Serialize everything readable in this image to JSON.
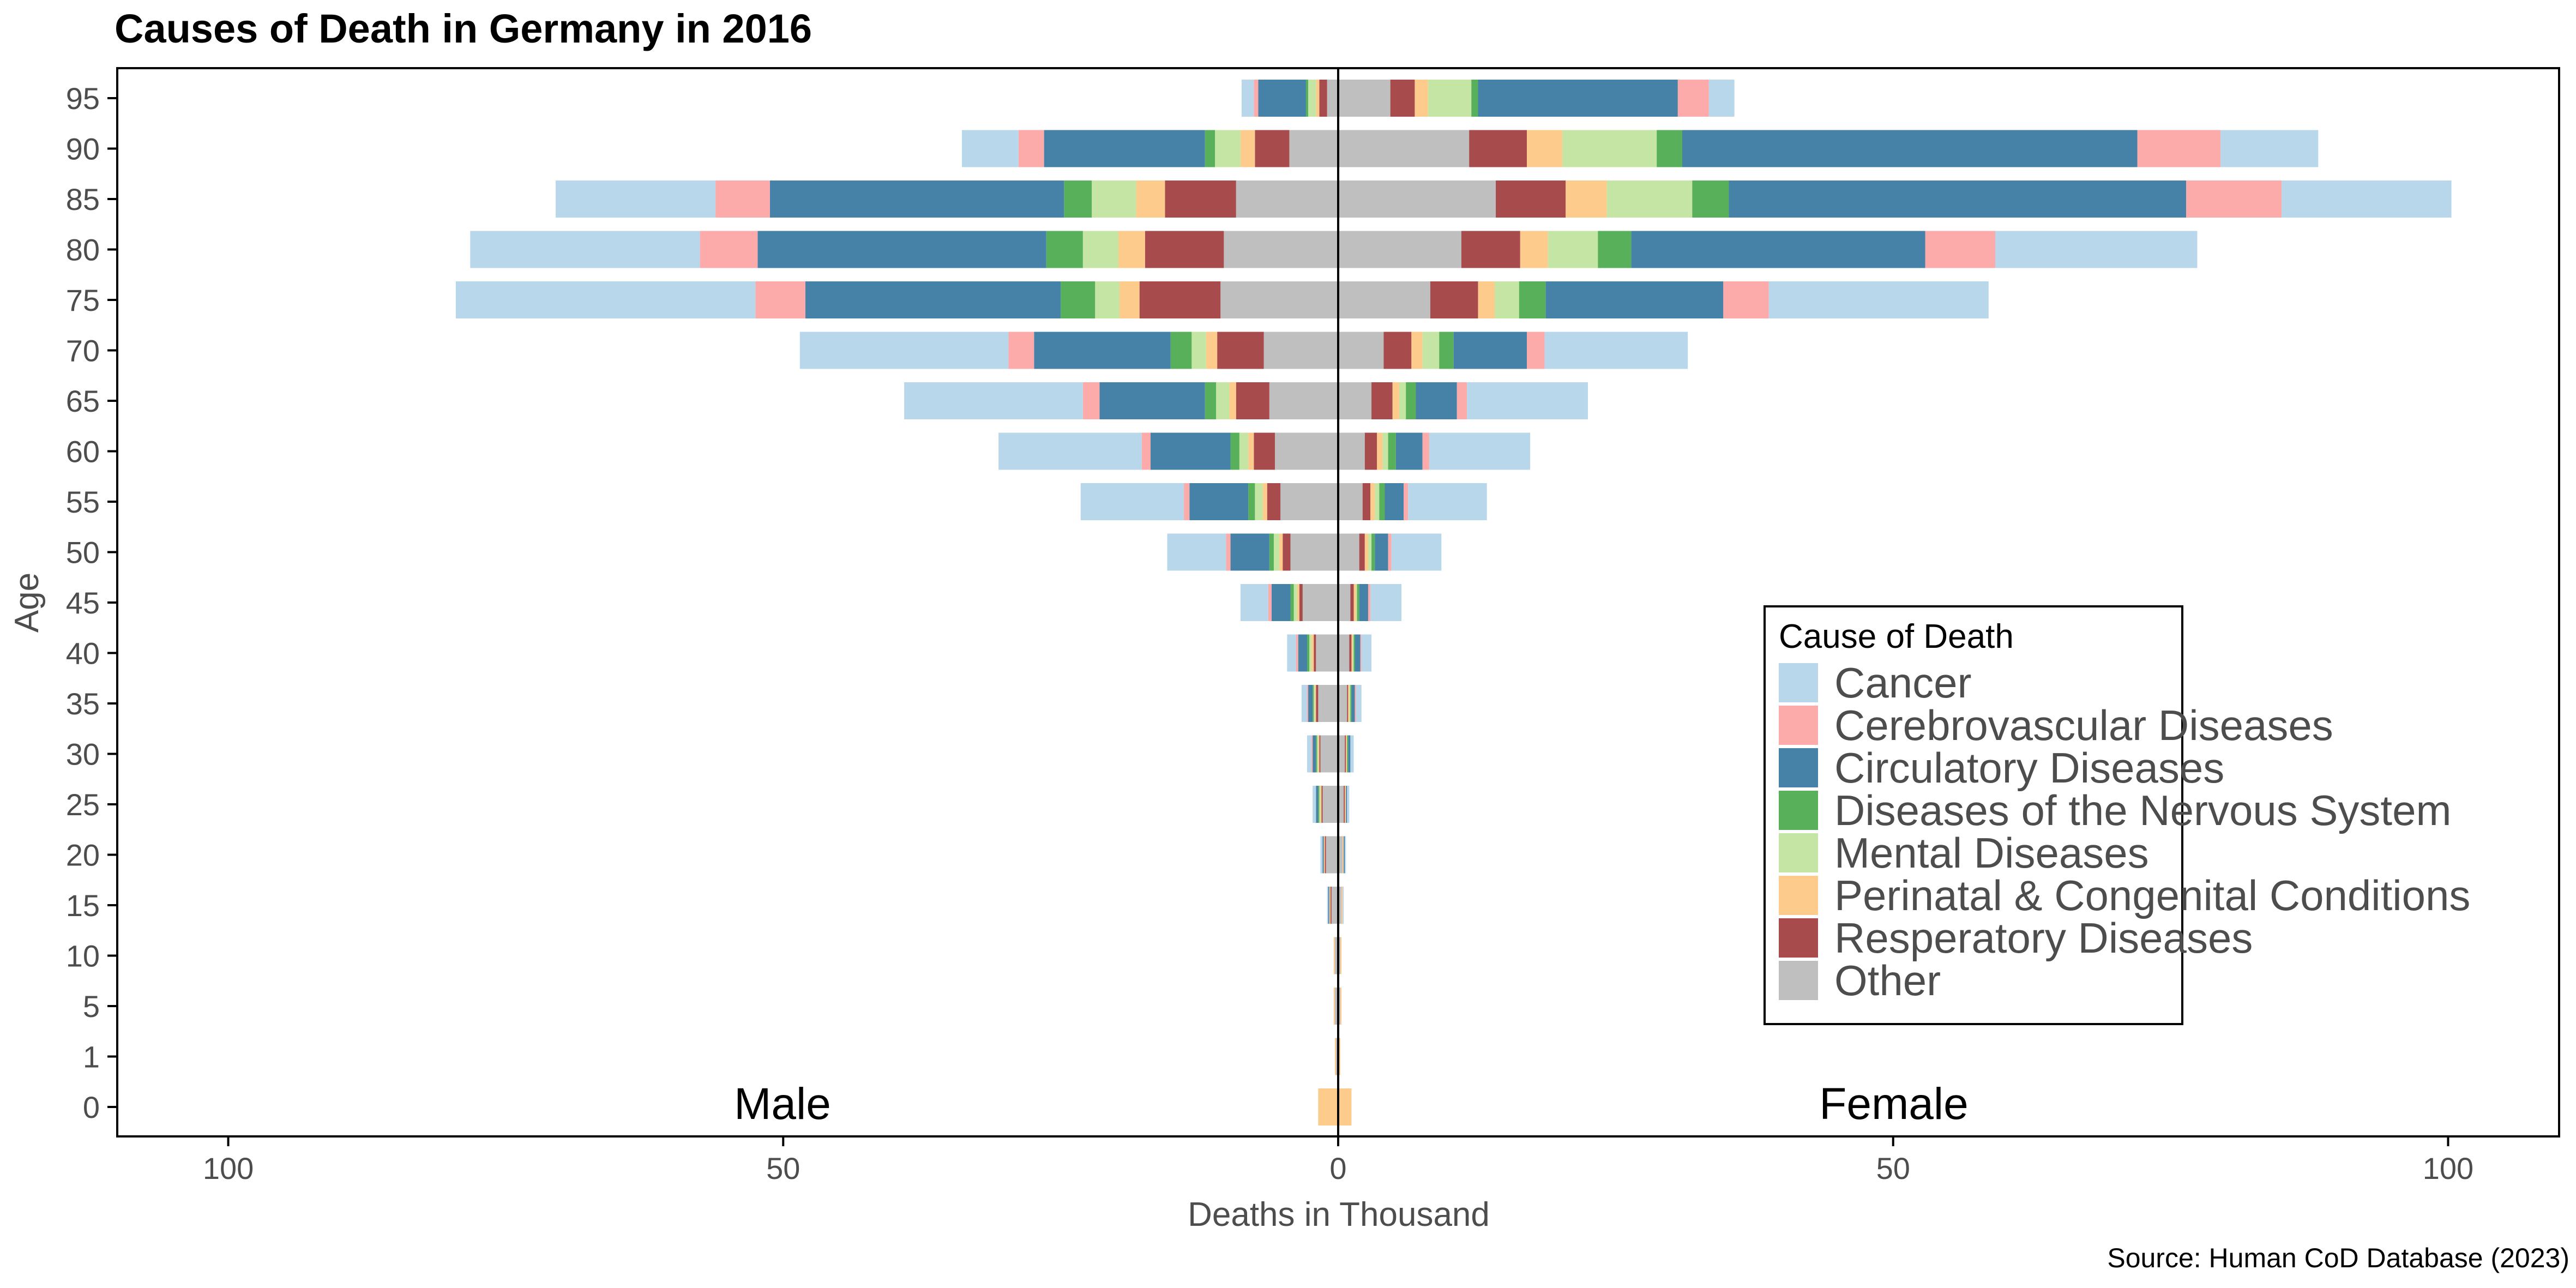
{
  "chart_data": {
    "type": "bar",
    "orientation": "horizontal-population-pyramid",
    "title": "Causes of Death in Germany in 2016",
    "xlabel": "Deaths in Thousand",
    "ylabel": "Age",
    "xlim": [
      -110,
      110
    ],
    "x_ticks": [
      -100,
      -50,
      0,
      50,
      100
    ],
    "x_tick_labels": [
      "100",
      "50",
      "0",
      "50",
      "100"
    ],
    "categories": [
      "0",
      "1",
      "5",
      "10",
      "15",
      "20",
      "25",
      "30",
      "35",
      "40",
      "45",
      "50",
      "55",
      "60",
      "65",
      "70",
      "75",
      "80",
      "85",
      "90",
      "95"
    ],
    "annotations": {
      "left": "Male",
      "right": "Female"
    },
    "legend": {
      "title": "Cause of Death",
      "position": "lower-right"
    },
    "source": "Source: Human CoD Database (2023)",
    "grid": false,
    "stack_order_from_center": [
      "Other",
      "Resperatory Diseases",
      "Perinatal & Congenital Conditions",
      "Mental Diseases",
      "Diseases of the Nervous System",
      "Circulatory Diseases",
      "Cerebrovascular Diseases",
      "Cancer"
    ],
    "series": [
      {
        "name": "Cancer",
        "color": "#b8d7ea",
        "male": [
          0,
          0,
          0,
          0,
          0.1,
          0.2,
          0.3,
          0.4,
          0.5,
          0.8,
          2.5,
          5.3,
          9.3,
          12.9,
          16.1,
          18.8,
          27.0,
          20.7,
          14.4,
          5.1,
          1.1
        ],
        "female": [
          0,
          0,
          0,
          0,
          0.1,
          0.1,
          0.2,
          0.3,
          0.5,
          0.9,
          2.8,
          4.5,
          7.1,
          9.1,
          10.9,
          12.9,
          19.8,
          18.2,
          15.3,
          8.8,
          2.3
        ]
      },
      {
        "name": "Cerebrovascular Diseases",
        "color": "#fdaaaa",
        "male": [
          0,
          0,
          0,
          0,
          0,
          0,
          0,
          0.1,
          0.1,
          0.2,
          0.3,
          0.4,
          0.5,
          0.8,
          1.5,
          2.3,
          4.5,
          5.2,
          4.9,
          2.3,
          0.4
        ],
        "female": [
          0,
          0,
          0,
          0,
          0,
          0,
          0,
          0,
          0.1,
          0.1,
          0.2,
          0.3,
          0.4,
          0.6,
          0.9,
          1.6,
          4.1,
          6.3,
          8.6,
          7.5,
          2.8
        ]
      },
      {
        "name": "Circulatory Diseases",
        "color": "#4682a8",
        "male": [
          0,
          0,
          0,
          0,
          0.1,
          0.1,
          0.2,
          0.3,
          0.4,
          0.8,
          1.7,
          3.5,
          5.3,
          7.2,
          9.5,
          12.3,
          23.0,
          26.0,
          26.5,
          14.5,
          4.3
        ],
        "female": [
          0,
          0,
          0,
          0,
          0,
          0.1,
          0.1,
          0.2,
          0.3,
          0.5,
          0.8,
          1.2,
          1.7,
          2.4,
          3.7,
          6.6,
          16.0,
          26.5,
          41.2,
          41.0,
          18.0
        ]
      },
      {
        "name": "Diseases of the Nervous System",
        "color": "#58b05b",
        "male": [
          0,
          0,
          0,
          0,
          0,
          0,
          0.1,
          0.1,
          0.1,
          0.2,
          0.3,
          0.4,
          0.6,
          0.8,
          1.0,
          1.9,
          3.1,
          3.3,
          2.5,
          0.9,
          0.2
        ],
        "female": [
          0,
          0,
          0,
          0,
          0,
          0,
          0,
          0.1,
          0.1,
          0.1,
          0.2,
          0.3,
          0.5,
          0.7,
          0.9,
          1.3,
          2.4,
          3.0,
          3.3,
          2.3,
          0.6
        ]
      },
      {
        "name": "Mental Diseases",
        "color": "#c4e5a4",
        "male": [
          0,
          0,
          0,
          0,
          0,
          0,
          0.1,
          0.1,
          0.1,
          0.2,
          0.3,
          0.5,
          0.7,
          0.8,
          1.2,
          1.3,
          2.2,
          3.2,
          4.0,
          2.3,
          0.7
        ],
        "female": [
          0,
          0,
          0,
          0,
          0,
          0,
          0,
          0,
          0.1,
          0.1,
          0.1,
          0.3,
          0.4,
          0.5,
          0.6,
          1.5,
          2.2,
          4.5,
          7.7,
          8.5,
          3.9
        ]
      },
      {
        "name": "Perinatal & Congenital Conditions",
        "color": "#fdcb8b",
        "male": [
          1.8,
          0.1,
          0.1,
          0.1,
          0.1,
          0.1,
          0.1,
          0.1,
          0.1,
          0.2,
          0.2,
          0.3,
          0.4,
          0.5,
          0.6,
          1.0,
          1.8,
          2.4,
          2.6,
          1.3,
          0.3
        ],
        "female": [
          1.2,
          0.1,
          0.1,
          0.1,
          0.1,
          0.1,
          0.1,
          0.1,
          0.1,
          0.1,
          0.2,
          0.3,
          0.4,
          0.5,
          0.6,
          1.0,
          1.5,
          2.5,
          3.7,
          3.2,
          1.2
        ]
      },
      {
        "name": "Resperatory Diseases",
        "color": "#a84b4c",
        "male": [
          0,
          0,
          0,
          0,
          0.1,
          0.1,
          0.1,
          0.1,
          0.2,
          0.2,
          0.3,
          0.7,
          1.2,
          1.9,
          3.0,
          4.2,
          7.3,
          7.1,
          6.4,
          3.1,
          0.7
        ],
        "female": [
          0,
          0,
          0,
          0,
          0,
          0,
          0.1,
          0.1,
          0.1,
          0.2,
          0.3,
          0.5,
          0.7,
          1.1,
          1.9,
          2.5,
          4.3,
          5.3,
          6.3,
          5.2,
          2.2
        ]
      },
      {
        "name": "Other",
        "color": "#bfbfbf",
        "male": [
          0,
          0.2,
          0.3,
          0.3,
          0.6,
          1.1,
          1.4,
          1.6,
          1.8,
          2.0,
          3.2,
          4.3,
          5.2,
          5.7,
          6.2,
          6.7,
          10.6,
          10.3,
          9.2,
          4.4,
          1.0
        ],
        "female": [
          0,
          0.1,
          0.2,
          0.2,
          0.3,
          0.4,
          0.5,
          0.6,
          0.8,
          1.0,
          1.1,
          1.9,
          2.2,
          2.4,
          3.0,
          4.1,
          8.3,
          11.1,
          14.2,
          11.8,
          4.7
        ]
      }
    ]
  }
}
